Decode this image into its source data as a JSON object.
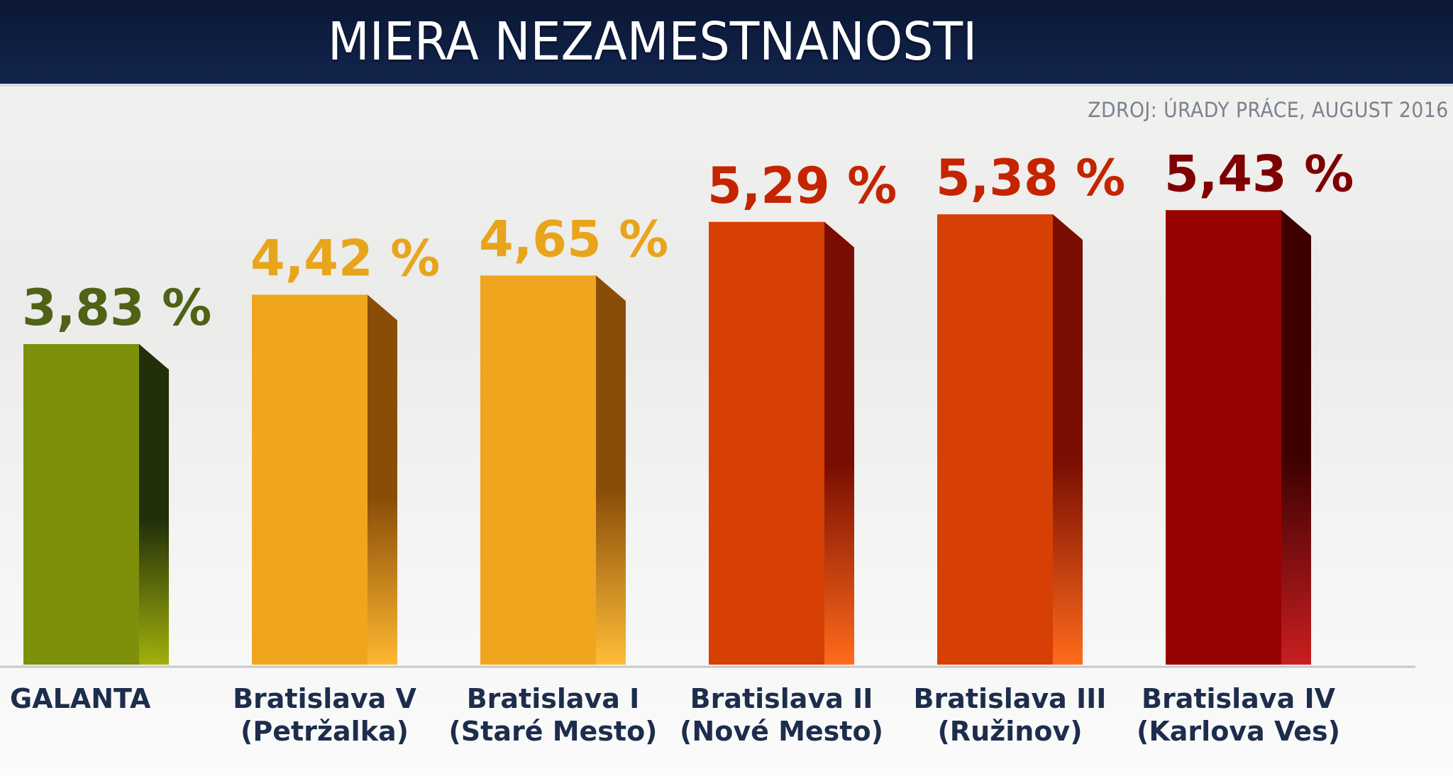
{
  "header": {
    "title": "MIERA NEZAMESTNANOSTI",
    "source": "ZDROJ: ÚRADY PRÁCE, AUGUST 2016"
  },
  "chart_data": {
    "type": "bar",
    "title": "MIERA NEZAMESTNANOSTI",
    "source": "ZDROJ: ÚRADY PRÁCE, AUGUST 2016",
    "xlabel": "",
    "ylabel": "",
    "ylim": [
      0,
      6.2
    ],
    "grid": false,
    "legend": "none",
    "categories": [
      [
        "GALANTA"
      ],
      [
        "Bratislava V",
        "(Petržalka)"
      ],
      [
        "Bratislava I",
        "(Staré Mesto)"
      ],
      [
        "Bratislava II",
        "(Nové Mesto)"
      ],
      [
        "Bratislava III",
        "(Ružinov)"
      ],
      [
        "Bratislava IV",
        "(Karlova Ves)"
      ]
    ],
    "values": [
      3.83,
      4.42,
      4.65,
      5.29,
      5.38,
      5.43
    ],
    "value_labels": [
      "3,83 %",
      "4,42 %",
      "4,65 %",
      "5,29 %",
      "5,38 %",
      "5,43 %"
    ],
    "colors": {
      "front": [
        "#7e8f0c",
        "#f0a51f",
        "#f0a51f",
        "#d64004",
        "#d64004",
        "#970300"
      ],
      "side": [
        "#22300a",
        "#8a4d08",
        "#8a4d08",
        "#7a0e02",
        "#7a0e02",
        "#3e0102"
      ],
      "side_light": [
        "#a2b00d",
        "#ffb830",
        "#ffbd38",
        "#ff6b1b",
        "#ff6b1b",
        "#c81f20"
      ],
      "label": [
        "#4f6215",
        "#e8a51c",
        "#e8a51c",
        "#c42400",
        "#c42400",
        "#7e0000"
      ]
    }
  }
}
